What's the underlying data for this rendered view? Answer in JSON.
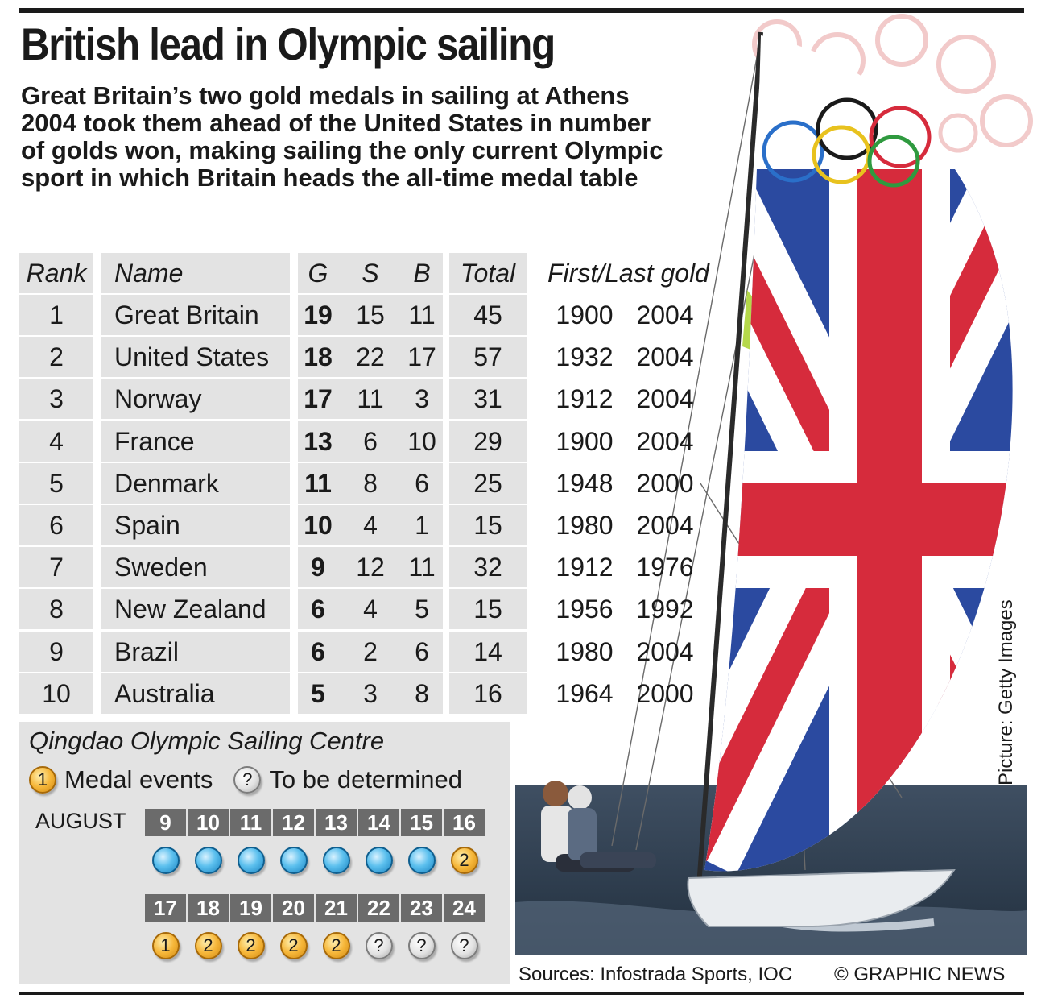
{
  "headline": "British lead in Olympic sailing",
  "intro": "Great Britain’s two gold medals in sailing at Athens 2004 took them ahead of the United States in number of golds won, making sailing the only current Olympic sport in which Britain heads the all-time medal table",
  "table": {
    "headers": {
      "rank": "Rank",
      "name": "Name",
      "g": "G",
      "s": "S",
      "b": "B",
      "total": "Total",
      "gold": "First/Last gold"
    },
    "rows": [
      {
        "rank": "1",
        "name": "Great Britain",
        "g": "19",
        "s": "15",
        "b": "11",
        "total": "45",
        "first": "1900",
        "last": "2004"
      },
      {
        "rank": "2",
        "name": "United States",
        "g": "18",
        "s": "22",
        "b": "17",
        "total": "57",
        "first": "1932",
        "last": "2004"
      },
      {
        "rank": "3",
        "name": "Norway",
        "g": "17",
        "s": "11",
        "b": "3",
        "total": "31",
        "first": "1912",
        "last": "2004"
      },
      {
        "rank": "4",
        "name": "France",
        "g": "13",
        "s": "6",
        "b": "10",
        "total": "29",
        "first": "1900",
        "last": "2004"
      },
      {
        "rank": "5",
        "name": "Denmark",
        "g": "11",
        "s": "8",
        "b": "6",
        "total": "25",
        "first": "1948",
        "last": "2000"
      },
      {
        "rank": "6",
        "name": "Spain",
        "g": "10",
        "s": "4",
        "b": "1",
        "total": "15",
        "first": "1980",
        "last": "2004"
      },
      {
        "rank": "7",
        "name": "Sweden",
        "g": "9",
        "s": "12",
        "b": "11",
        "total": "32",
        "first": "1912",
        "last": "1976"
      },
      {
        "rank": "8",
        "name": "New Zealand",
        "g": "6",
        "s": "4",
        "b": "5",
        "total": "15",
        "first": "1956",
        "last": "1992"
      },
      {
        "rank": "9",
        "name": "Brazil",
        "g": "6",
        "s": "2",
        "b": "6",
        "total": "14",
        "first": "1980",
        "last": "2004"
      },
      {
        "rank": "10",
        "name": "Australia",
        "g": "5",
        "s": "3",
        "b": "8",
        "total": "16",
        "first": "1964",
        "last": "2000"
      }
    ]
  },
  "schedule": {
    "title": "Qingdao Olympic Sailing Centre",
    "legend_medal_symbol": "1",
    "legend_medal_label": "Medal events",
    "legend_tbd_symbol": "?",
    "legend_tbd_label": "To be determined",
    "month": "AUGUST",
    "week1": [
      {
        "day": "9",
        "type": "blue",
        "label": ""
      },
      {
        "day": "10",
        "type": "blue",
        "label": ""
      },
      {
        "day": "11",
        "type": "blue",
        "label": ""
      },
      {
        "day": "12",
        "type": "blue",
        "label": ""
      },
      {
        "day": "13",
        "type": "blue",
        "label": ""
      },
      {
        "day": "14",
        "type": "blue",
        "label": ""
      },
      {
        "day": "15",
        "type": "blue",
        "label": ""
      },
      {
        "day": "16",
        "type": "gold",
        "label": "2"
      }
    ],
    "week2": [
      {
        "day": "17",
        "type": "gold",
        "label": "1"
      },
      {
        "day": "18",
        "type": "gold",
        "label": "2"
      },
      {
        "day": "19",
        "type": "gold",
        "label": "2"
      },
      {
        "day": "20",
        "type": "gold",
        "label": "2"
      },
      {
        "day": "21",
        "type": "gold",
        "label": "2"
      },
      {
        "day": "22",
        "type": "grey",
        "label": "?"
      },
      {
        "day": "23",
        "type": "grey",
        "label": "?"
      },
      {
        "day": "24",
        "type": "grey",
        "label": "?"
      }
    ]
  },
  "picture_credit": "Picture: Getty Images",
  "sources": "Sources: Infostrada Sports, IOC",
  "copyright": "© GRAPHIC NEWS",
  "colors": {
    "flag_red": "#d62b3c",
    "flag_blue": "#2b4aa0",
    "row_grey": "#e3e3e3",
    "day_grey": "#6b6b6b"
  }
}
